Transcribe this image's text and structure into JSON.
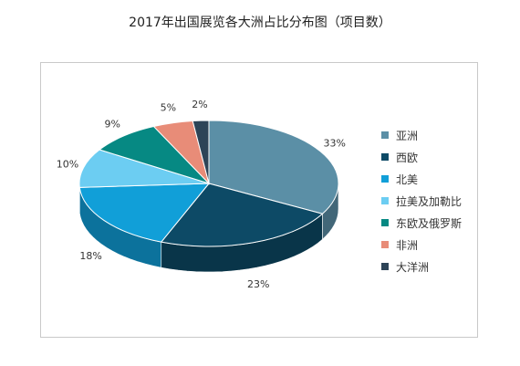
{
  "chart_data": {
    "type": "pie",
    "title": "2017年出国展览各大洲占比分布图（项目数）",
    "categories": [
      "亚洲",
      "西欧",
      "北美",
      "拉美及加勒比",
      "东欧及俄罗斯",
      "非洲",
      "大洋洲"
    ],
    "values": [
      33,
      23,
      18,
      10,
      9,
      5,
      2
    ],
    "labels": [
      "33%",
      "23%",
      "18%",
      "10%",
      "9%",
      "5%",
      "2%"
    ],
    "colors": [
      "#5b8fa6",
      "#0d4a66",
      "#119fd8",
      "#6ccdf2",
      "#068983",
      "#e88c78",
      "#2d4457"
    ],
    "legend_position": "right",
    "three_d": true
  }
}
